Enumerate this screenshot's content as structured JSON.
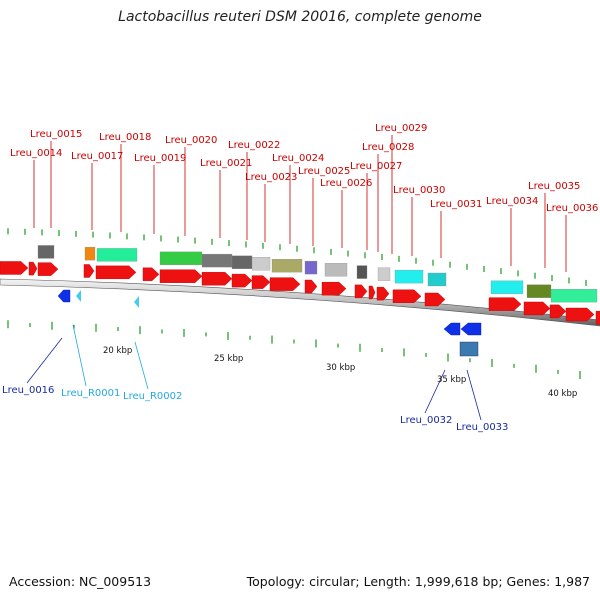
{
  "title": "Lactobacillus reuteri DSM 20016, complete genome",
  "footer": {
    "accession": "Accession: NC_009513",
    "summary": "Topology: circular; Length: 1,999,618 bp; Genes: 1,987"
  },
  "scale_labels": [
    "20 kbp",
    "25 kbp",
    "30 kbp",
    "35 kbp",
    "40 kbp"
  ],
  "colors": {
    "forward_cds": "#ee1111",
    "reverse_cds": "#1030e8",
    "rna": "#44ccee",
    "forward_label": "#cc0000",
    "reverse_label": "#1a2aa0",
    "rna_label": "#22aadd"
  },
  "gene_labels_forward": [
    "Lreu_0014",
    "Lreu_0015",
    "Lreu_0017",
    "Lreu_0018",
    "Lreu_0019",
    "Lreu_0020",
    "Lreu_0021",
    "Lreu_0022",
    "Lreu_0023",
    "Lreu_0024",
    "Lreu_0025",
    "Lreu_0026",
    "Lreu_0027",
    "Lreu_0028",
    "Lreu_0029",
    "Lreu_0030",
    "Lreu_0031",
    "Lreu_0034",
    "Lreu_0035",
    "Lreu_0036"
  ],
  "gene_labels_reverse": [
    "Lreu_0016",
    "Lreu_R0001",
    "Lreu_R0002",
    "Lreu_0032",
    "Lreu_0033"
  ]
}
